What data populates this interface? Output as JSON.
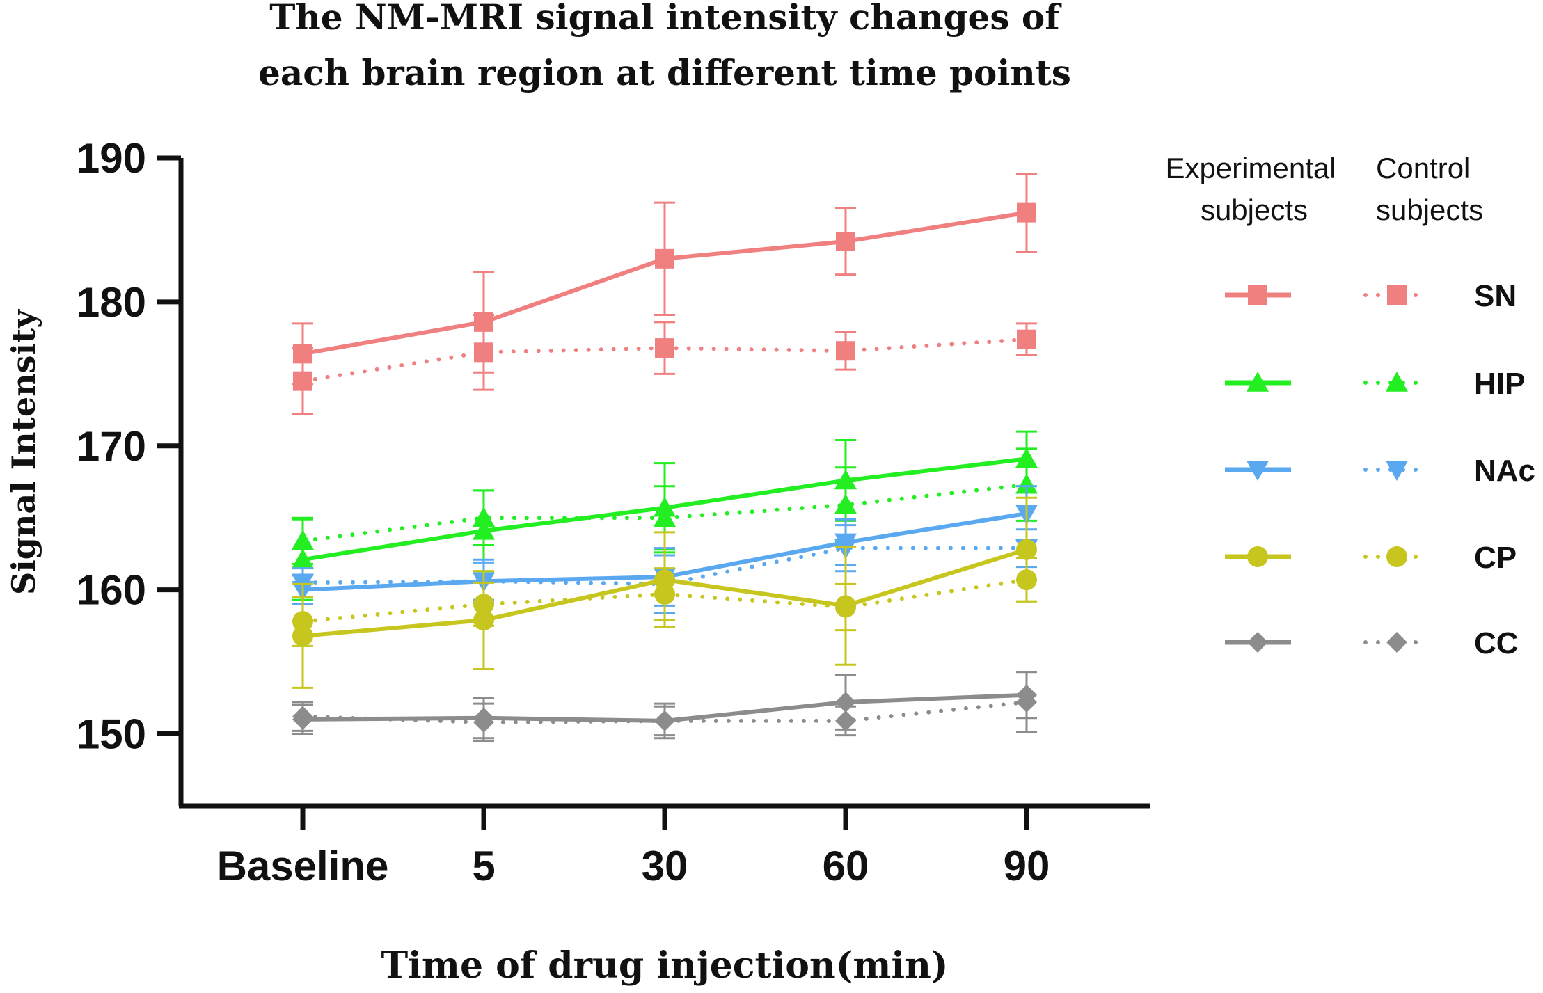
{
  "chart_data": {
    "type": "line",
    "title_lines": [
      "The NM-MRI signal intensity changes of",
      "each brain region at different time points"
    ],
    "xlabel": "Time of drug injection(min)",
    "ylabel": "Signal Intensity",
    "categories": [
      "Baseline",
      "5",
      "30",
      "60",
      "90"
    ],
    "ylim": [
      145,
      190
    ],
    "yticks": [
      150,
      160,
      170,
      180,
      190
    ],
    "legend": {
      "position": "right",
      "header_experimental": [
        "Experimental",
        "subjects"
      ],
      "header_control": [
        "Control",
        "subjects"
      ]
    },
    "series": [
      {
        "name": "SN",
        "group": "Experimental",
        "color": "#F08080",
        "marker": "square",
        "style": "solid",
        "values": [
          176.4,
          178.6,
          183.0,
          184.2,
          186.2
        ],
        "error": [
          2.1,
          3.5,
          3.9,
          2.3,
          2.7
        ]
      },
      {
        "name": "SN",
        "group": "Control",
        "color": "#F08080",
        "marker": "square",
        "style": "dotted",
        "values": [
          174.5,
          176.5,
          176.8,
          176.6,
          177.4
        ],
        "error": [
          2.3,
          2.6,
          1.8,
          1.3,
          1.1
        ]
      },
      {
        "name": "HIP",
        "group": "Experimental",
        "color": "#22EE22",
        "marker": "triangle-up",
        "style": "solid",
        "values": [
          162.1,
          164.1,
          165.7,
          167.6,
          169.1
        ],
        "error": [
          2.8,
          2.8,
          3.1,
          2.8,
          1.9
        ]
      },
      {
        "name": "HIP",
        "group": "Control",
        "color": "#22EE22",
        "marker": "triangle-up",
        "style": "dotted",
        "values": [
          163.4,
          165.0,
          165.0,
          165.9,
          167.3
        ],
        "error": [
          1.6,
          1.9,
          2.2,
          2.6,
          2.5
        ]
      },
      {
        "name": "NAc",
        "group": "Experimental",
        "color": "#5AA9F0",
        "marker": "triangle-down",
        "style": "solid",
        "values": [
          160.0,
          160.6,
          160.9,
          163.3,
          165.3
        ],
        "error": [
          1.0,
          1.5,
          2.0,
          1.6,
          1.9
        ]
      },
      {
        "name": "NAc",
        "group": "Control",
        "color": "#5AA9F0",
        "marker": "triangle-down",
        "style": "dotted",
        "values": [
          160.5,
          160.6,
          160.4,
          162.9,
          162.9
        ],
        "error": [
          1.0,
          1.3,
          2.0,
          1.6,
          1.3
        ]
      },
      {
        "name": "CP",
        "group": "Experimental",
        "color": "#C6C61E",
        "marker": "circle",
        "style": "solid",
        "values": [
          156.8,
          157.9,
          160.7,
          158.9,
          162.8
        ],
        "error": [
          3.6,
          3.4,
          3.3,
          4.1,
          3.6
        ]
      },
      {
        "name": "CP",
        "group": "Control",
        "color": "#C6C61E",
        "marker": "circle",
        "style": "dotted",
        "values": [
          157.8,
          159.0,
          159.7,
          158.8,
          160.7
        ],
        "error": [
          1.7,
          1.5,
          1.8,
          1.6,
          1.5
        ]
      },
      {
        "name": "CC",
        "group": "Experimental",
        "color": "#8C8C8C",
        "marker": "diamond",
        "style": "solid",
        "values": [
          151.0,
          151.1,
          150.9,
          152.2,
          152.7
        ],
        "error": [
          1.0,
          1.4,
          1.2,
          1.9,
          1.6
        ]
      },
      {
        "name": "CC",
        "group": "Control",
        "color": "#8C8C8C",
        "marker": "diamond",
        "style": "dotted",
        "values": [
          151.2,
          150.8,
          150.9,
          150.9,
          152.2
        ],
        "error": [
          1.0,
          1.3,
          1.0,
          1.0,
          2.1
        ]
      }
    ]
  }
}
